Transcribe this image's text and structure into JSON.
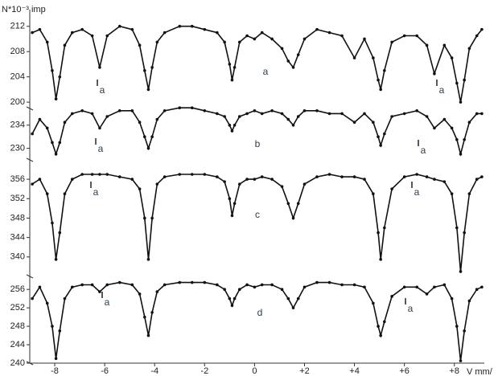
{
  "chart_data": {
    "type": "line",
    "ylabel": "N*10⁻³ imp",
    "xlabel": "V mm/",
    "xlim": [
      -9,
      9.2
    ],
    "xticks": [
      -8,
      -6,
      -4,
      -2,
      0,
      {
        "value": 2,
        "label": "+2"
      },
      {
        "value": 4,
        "label": "+4"
      },
      {
        "value": 6,
        "label": "+6"
      },
      {
        "value": 8,
        "label": "+8"
      }
    ],
    "color": "#111111",
    "x": [
      -8.9,
      -8.6,
      -8.3,
      -8.1,
      -7.95,
      -7.8,
      -7.6,
      -7.3,
      -6.9,
      -6.5,
      -6.2,
      -5.9,
      -5.4,
      -4.9,
      -4.6,
      -4.4,
      -4.25,
      -4.1,
      -3.9,
      -3.6,
      -3.0,
      -2.5,
      -2.0,
      -1.5,
      -1.2,
      -1.0,
      -0.9,
      -0.8,
      -0.6,
      -0.3,
      0,
      0.3,
      0.7,
      1.1,
      1.35,
      1.55,
      1.75,
      2.0,
      2.5,
      3.0,
      3.5,
      4.0,
      4.4,
      4.75,
      4.95,
      5.05,
      5.2,
      5.5,
      6.0,
      6.5,
      6.9,
      7.2,
      7.6,
      7.9,
      8.1,
      8.25,
      8.4,
      8.6,
      8.9,
      9.1
    ],
    "panels": [
      {
        "label": "a",
        "ylim": [
          199,
          214
        ],
        "yticks": [
          200,
          204,
          208,
          212
        ],
        "annotations": [
          "a",
          "a"
        ],
        "values": [
          211.0,
          211.5,
          209.5,
          205,
          200.5,
          204,
          209,
          211,
          211.5,
          210.5,
          205.5,
          210.5,
          212,
          211.5,
          209,
          205,
          202,
          205.5,
          209.5,
          211,
          212,
          212,
          211.5,
          211,
          209.5,
          206,
          203.5,
          205.5,
          209.5,
          210.5,
          210,
          211,
          210,
          208.5,
          206.5,
          205.5,
          207.5,
          210,
          211.5,
          211,
          210.5,
          207,
          210,
          207,
          203.5,
          202,
          205,
          209.5,
          210.5,
          210.5,
          209,
          204.5,
          209,
          207,
          203,
          200,
          203.5,
          208.5,
          210.5,
          211.5
        ]
      },
      {
        "label": "b",
        "ylim": [
          228,
          238
        ],
        "yticks": [
          230,
          234
        ],
        "annotations": [
          "a",
          "a"
        ],
        "values": [
          232.5,
          235,
          233.5,
          231,
          229,
          231,
          234.5,
          236,
          236.5,
          236,
          233.5,
          235.5,
          236.5,
          236.5,
          234.5,
          232,
          230,
          232,
          235,
          236.5,
          237,
          237,
          236.5,
          236,
          235.5,
          234,
          233,
          234,
          235.5,
          236,
          236.5,
          236,
          236.5,
          236,
          235,
          234,
          235.5,
          236.5,
          236.5,
          236,
          236,
          234.5,
          236,
          234.5,
          232,
          230.5,
          232.5,
          235.5,
          236,
          236.5,
          235.5,
          233.5,
          235,
          233.5,
          231.5,
          229,
          231.5,
          234.5,
          236,
          236
        ]
      },
      {
        "label": "c",
        "ylim": [
          336,
          358
        ],
        "yticks": [
          340,
          344,
          348,
          352,
          356
        ],
        "annotations": [
          "a",
          "a"
        ],
        "values": [
          355,
          356,
          353,
          347,
          339.5,
          345,
          353,
          356,
          357,
          357,
          357,
          357,
          356.5,
          356,
          354,
          348,
          339.5,
          348,
          355,
          356.5,
          357,
          357,
          357,
          356.5,
          355.5,
          352,
          348.5,
          351,
          355,
          356,
          356,
          356.5,
          356,
          354.5,
          351,
          348,
          351,
          355,
          356.5,
          357,
          356.5,
          356.5,
          356,
          353,
          345,
          339.5,
          346,
          354,
          356.5,
          357,
          356.5,
          356,
          355.5,
          353,
          346,
          337,
          345,
          353,
          356,
          356.5
        ]
      },
      {
        "label": "d",
        "ylim": [
          240,
          259
        ],
        "yticks": [
          240,
          244,
          248,
          252,
          256
        ],
        "annotations": [
          "a",
          "a"
        ],
        "values": [
          254,
          256.5,
          253,
          248,
          241,
          247,
          254,
          256.5,
          257,
          257,
          255.5,
          257,
          257.5,
          257,
          255,
          250,
          246,
          251,
          255.5,
          257,
          257.5,
          257.5,
          257.5,
          257,
          256,
          254,
          252.5,
          254,
          256,
          257,
          256.5,
          257,
          257,
          256,
          254,
          252,
          254,
          256.5,
          257.5,
          257.5,
          257,
          257,
          256.5,
          253,
          248,
          246,
          249,
          254.5,
          256.5,
          256.5,
          255,
          256.5,
          257,
          254,
          248,
          240.5,
          247,
          253.5,
          256,
          256.5
        ]
      }
    ]
  }
}
